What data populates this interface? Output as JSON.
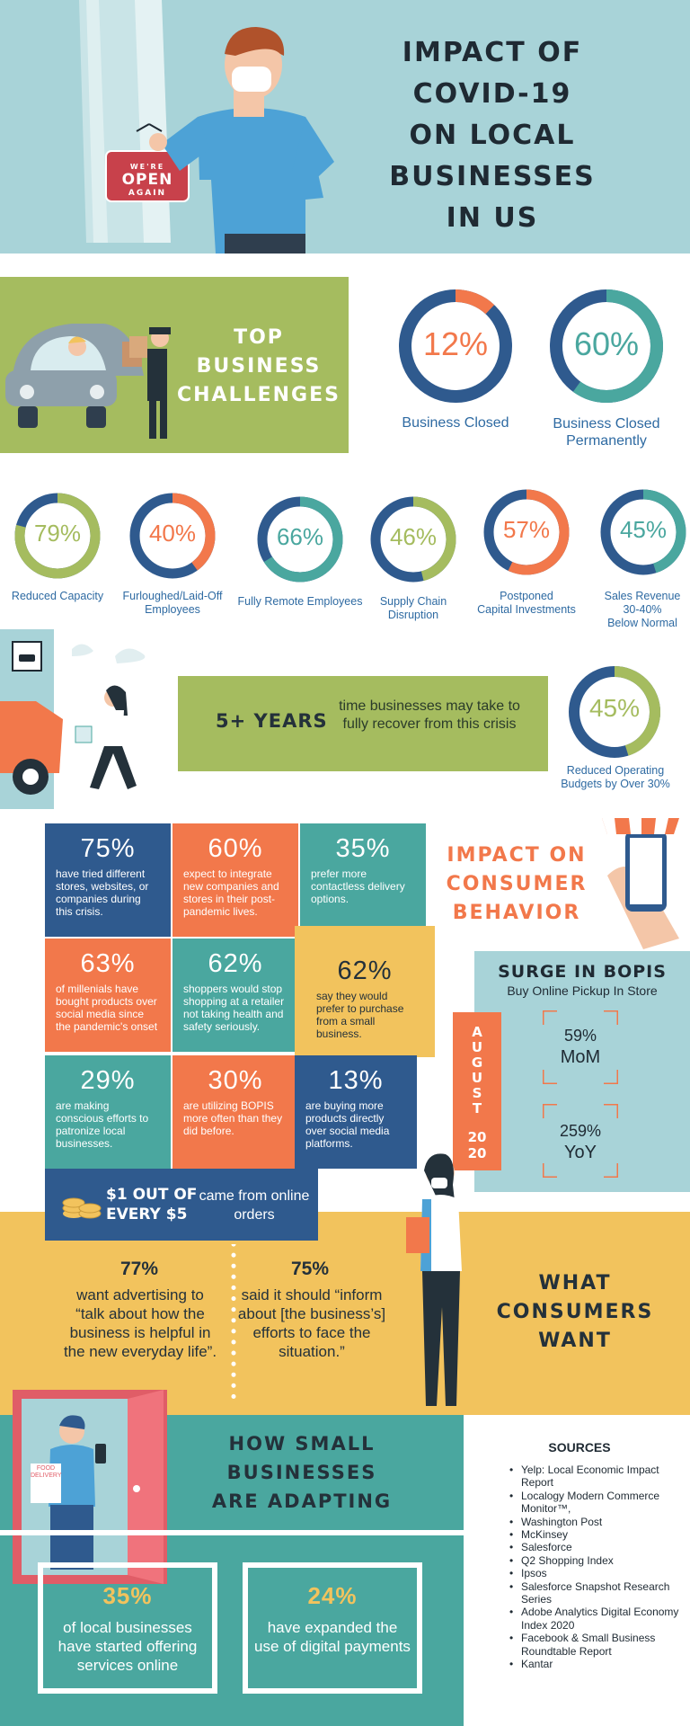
{
  "hero": {
    "title_lines": [
      "IMPACT OF",
      "COVID-19",
      "ON LOCAL",
      "BUSINESSES",
      "IN US"
    ],
    "sign_top": "WE'RE",
    "sign_mid": "OPEN",
    "sign_bot": "AGAIN"
  },
  "challenges": {
    "title_lines": [
      "TOP",
      "BUSINESS",
      "CHALLENGES"
    ],
    "large": [
      {
        "value": "12%",
        "fraction": 0.12,
        "label": "Business Closed",
        "color": "#f2784b"
      },
      {
        "value": "60%",
        "fraction": 0.6,
        "label_lines": [
          "Business Closed",
          "Permanently"
        ],
        "color": "#4aa79f"
      }
    ],
    "small": [
      {
        "value": "79%",
        "fraction": 0.79,
        "label_lines": [
          "Reduced Capacity"
        ],
        "color": "#a5bc5f"
      },
      {
        "value": "40%",
        "fraction": 0.4,
        "label_lines": [
          "Furloughed/Laid-Off",
          "Employees"
        ],
        "color": "#f2784b"
      },
      {
        "value": "66%",
        "fraction": 0.66,
        "label_lines": [
          "Fully Remote Employees"
        ],
        "color": "#4aa79f"
      },
      {
        "value": "46%",
        "fraction": 0.46,
        "label_lines": [
          "Supply Chain",
          "Disruption"
        ],
        "color": "#a5bc5f"
      },
      {
        "value": "57%",
        "fraction": 0.57,
        "label_lines": [
          "Postponed",
          "Capital Investments"
        ],
        "color": "#f2784b"
      },
      {
        "value": "45%",
        "fraction": 0.45,
        "label_lines": [
          "Sales Revenue",
          "30-40%",
          "Below Normal"
        ],
        "color": "#4aa79f"
      }
    ],
    "ring_base_color": "#2f5a8e"
  },
  "recovery": {
    "big": "5+ YEARS",
    "text": "time businesses may take to fully recover from this crisis",
    "donut": {
      "value": "45%",
      "fraction": 0.45,
      "label_lines": [
        "Reduced Operating",
        "Budgets by Over 30%"
      ],
      "color": "#a5bc5f"
    }
  },
  "consumer": {
    "title_lines": [
      "IMPACT ON",
      "CONSUMER",
      "BEHAVIOR"
    ],
    "tiles": [
      {
        "pct": "75%",
        "text": "have tried different stores, websites, or companies during this crisis."
      },
      {
        "pct": "60%",
        "text": "expect to integrate new companies and stores in their post-pandemic lives."
      },
      {
        "pct": "35%",
        "text": "prefer more contactless delivery options."
      },
      {
        "pct": "63%",
        "text": "of millenials have bought products over social media since the pandemic's onset"
      },
      {
        "pct": "62%",
        "text": "shoppers would stop shopping at a retailer not taking health and safety seriously."
      },
      {
        "pct": "62%",
        "text": "say they would prefer to purchase from a small business."
      },
      {
        "pct": "29%",
        "text": "are making conscious efforts to patronize local businesses."
      },
      {
        "pct": "30%",
        "text": "are utilizing BOPIS more often than they did before."
      },
      {
        "pct": "13%",
        "text": "are buying more products directly over social media platforms."
      }
    ],
    "dollar_big": "$1 OUT OF EVERY $5",
    "dollar_text": "came from online orders"
  },
  "bopis": {
    "title": "SURGE IN BOPIS",
    "subtitle": "Buy Online Pickup In Store",
    "month_letters": [
      "A",
      "U",
      "G",
      "U",
      "S",
      "T"
    ],
    "year": "2020",
    "mom_value": "59%",
    "mom_label": "MoM",
    "yoy_value": "259%",
    "yoy_label": "YoY"
  },
  "wants": {
    "title_lines": [
      "WHAT",
      "CONSUMERS",
      "WANT"
    ],
    "left_pct": "77%",
    "left_text": "want advertising to “talk about how the business is helpful in the new everyday life”.",
    "right_pct": "75%",
    "right_text": "said it should “inform about [the business’s] efforts to face the situation.”"
  },
  "adapting": {
    "title_lines": [
      "HOW SMALL",
      "BUSINESSES",
      "ARE ADAPTING"
    ],
    "card1_pct": "35%",
    "card1_text": "of local businesses have started offering services online",
    "card2_pct": "24%",
    "card2_text": "have expanded the use of digital payments",
    "bag_text": "FOOD DELIVERY"
  },
  "sources": {
    "title": "SOURCES",
    "items": [
      "Yelp: Local Economic Impact Report",
      "Localogy Modern Commerce Monitor™,",
      "Washington Post",
      "McKinsey",
      "Salesforce",
      "Q2 Shopping Index",
      "Ipsos",
      "Salesforce Snapshot Research Series",
      "Adobe Analytics Digital Economy Index 2020",
      "Facebook & Small Business Roundtable Report",
      "Kantar"
    ]
  }
}
